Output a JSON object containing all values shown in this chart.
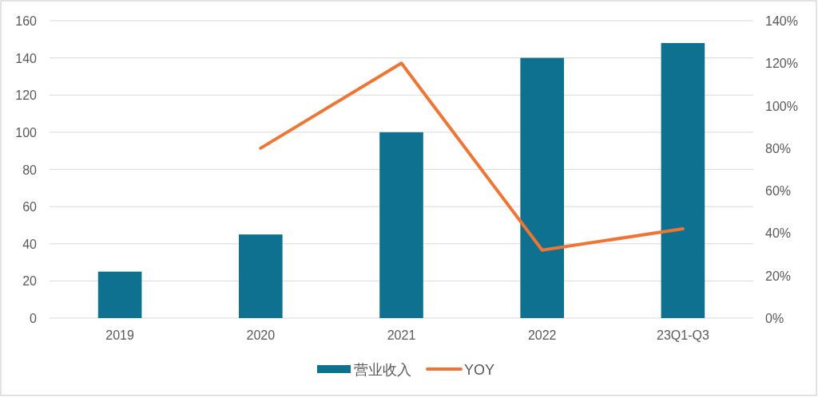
{
  "chart_data": {
    "type": "bar",
    "categories": [
      "2019",
      "2020",
      "2021",
      "2022",
      "23Q1-Q3"
    ],
    "series": [
      {
        "name": "营业收入",
        "color": "#0e7190",
        "values": [
          25,
          45,
          100,
          140,
          148
        ]
      },
      {
        "name": "YOY",
        "type": "line",
        "axis": "y2",
        "color": "#ee7533",
        "values": [
          null,
          80,
          120,
          32,
          42
        ]
      }
    ],
    "ylim": [
      0,
      160
    ],
    "yticks": [
      0,
      20,
      40,
      60,
      80,
      100,
      120,
      140,
      160
    ],
    "y2lim": [
      0,
      140
    ],
    "y2ticks": [
      {
        "value": 0,
        "label": "0%"
      },
      {
        "value": 20,
        "label": "20%"
      },
      {
        "value": 40,
        "label": "40%"
      },
      {
        "value": 60,
        "label": "60%"
      },
      {
        "value": 80,
        "label": "80%"
      },
      {
        "value": 100,
        "label": "100%"
      },
      {
        "value": 120,
        "label": "120%"
      },
      {
        "value": 140,
        "label": "140%"
      }
    ],
    "grid": "y",
    "legend": "bottom",
    "marker": "none"
  }
}
